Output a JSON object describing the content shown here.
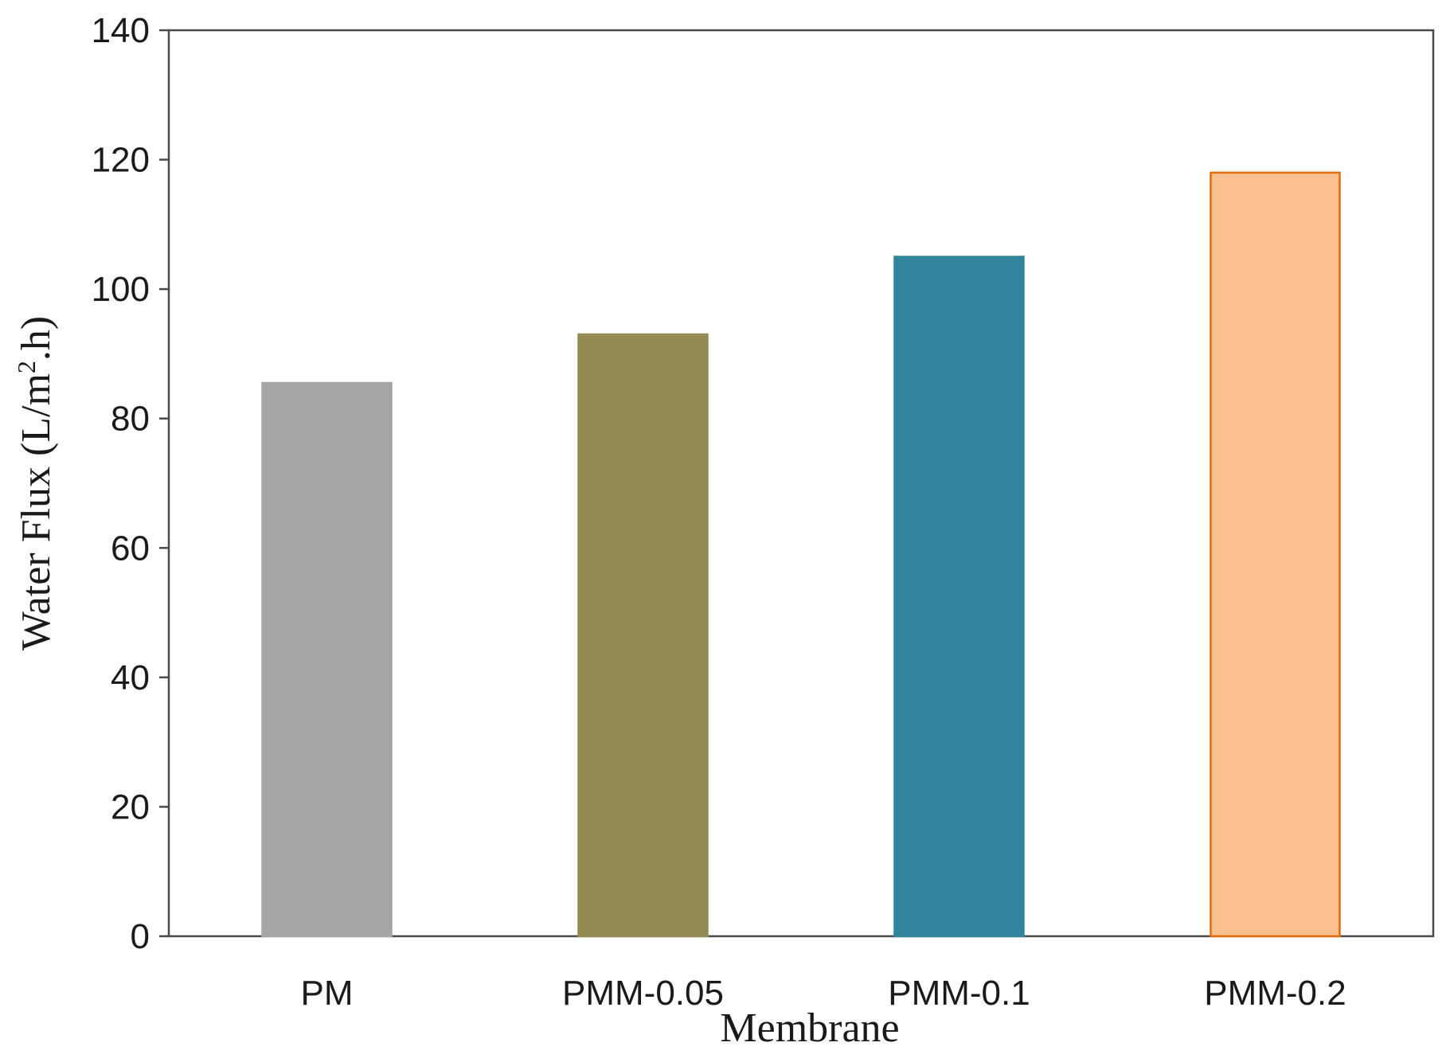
{
  "chart_data": {
    "type": "bar",
    "categories": [
      "PM",
      "PMM-0.05",
      "PMM-0.1",
      "PMM-0.2"
    ],
    "values": [
      85.5,
      93,
      105,
      118
    ],
    "colors": [
      "#a6a6a6",
      "#948a54",
      "#31849b",
      "#fac090"
    ],
    "bar_outline_colors": [
      "#a6a6a6",
      "#948a54",
      "#31849b",
      "#e46c0a"
    ],
    "xlabel": "Membrane",
    "ylabel_main": "Water Flux (L/m",
    "ylabel_sup": "2",
    "ylabel_tail": ".h)",
    "ylim": [
      0,
      140
    ],
    "yticks": [
      0,
      20,
      40,
      60,
      80,
      100,
      120,
      140
    ],
    "grid": false,
    "legend": "none"
  }
}
